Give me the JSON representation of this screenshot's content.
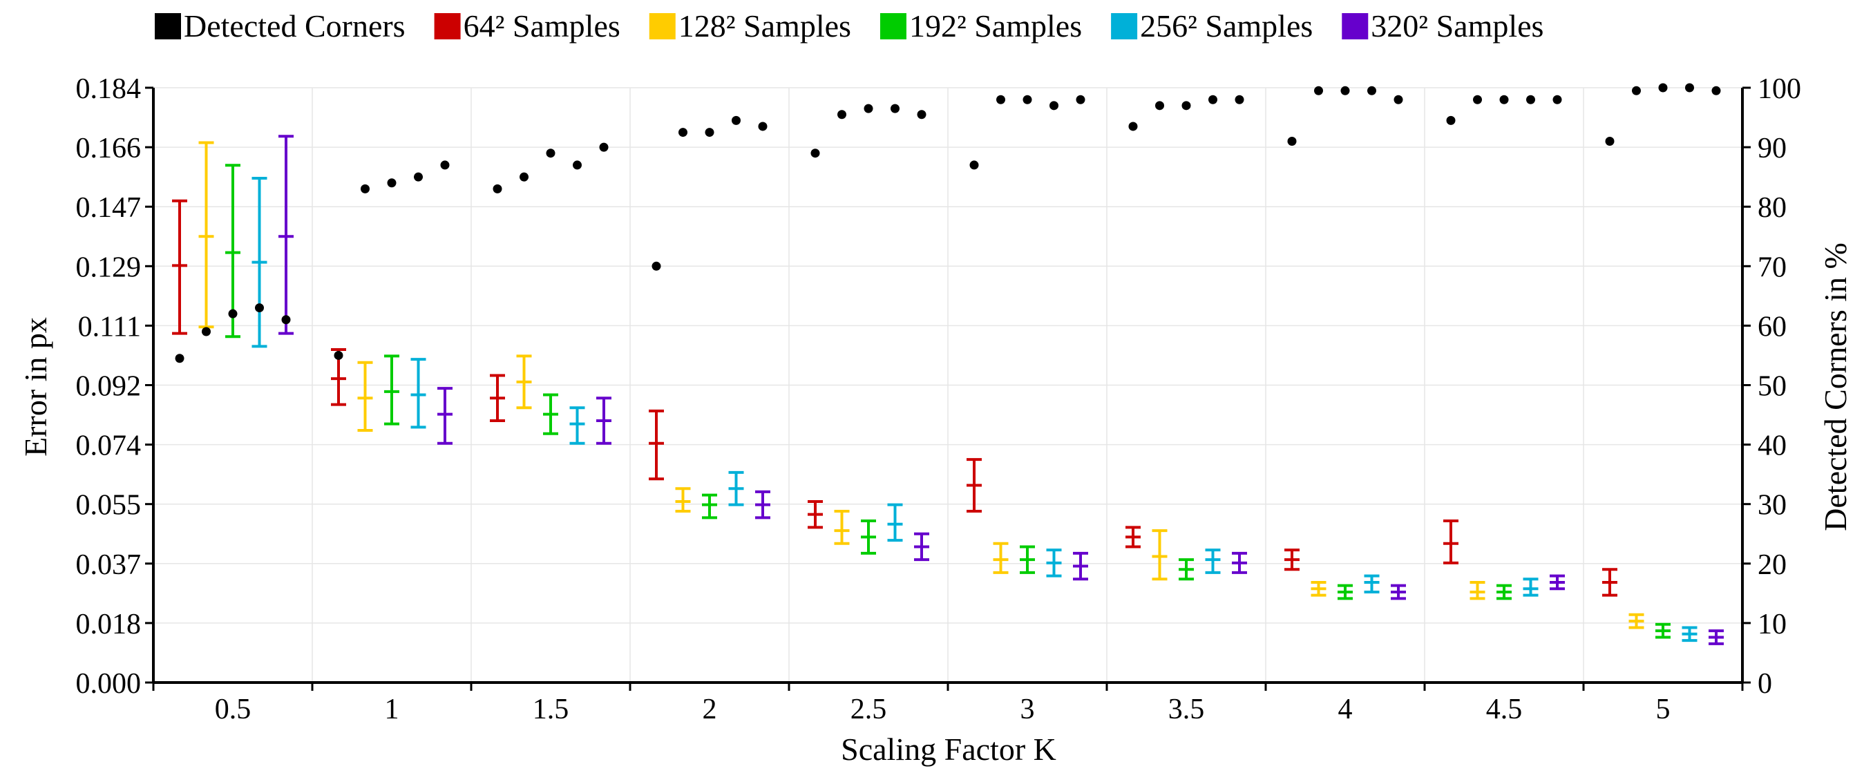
{
  "chart_data": {
    "type": "errorbar-scatter",
    "xlabel": "Scaling Factor K",
    "ylabel": "Error in px",
    "y2label": "Detected Corners in %",
    "categories": [
      "0.5",
      "1",
      "1.5",
      "2",
      "2.5",
      "3",
      "3.5",
      "4",
      "4.5",
      "5"
    ],
    "ylim": [
      0,
      0.184
    ],
    "yticks": [
      "0.000",
      "0.018",
      "0.037",
      "0.055",
      "0.074",
      "0.092",
      "0.111",
      "0.129",
      "0.147",
      "0.166",
      "0.184"
    ],
    "y2lim": [
      0,
      100
    ],
    "y2ticks": [
      "0",
      "10",
      "20",
      "30",
      "40",
      "50",
      "60",
      "70",
      "80",
      "90",
      "100"
    ],
    "grid": true,
    "legend_position": "top",
    "legend": [
      {
        "label": "Detected Corners",
        "color": "#000000"
      },
      {
        "label": "64² Samples",
        "color": "#cc0000"
      },
      {
        "label": "128² Samples",
        "color": "#ffcc00"
      },
      {
        "label": "192² Samples",
        "color": "#00cc00"
      },
      {
        "label": "256² Samples",
        "color": "#00b0d8"
      },
      {
        "label": "320² Samples",
        "color": "#6600cc"
      }
    ],
    "series": [
      {
        "name": "64² Samples",
        "color": "#cc0000",
        "mean": [
          0.129,
          0.094,
          0.088,
          0.074,
          0.052,
          0.061,
          0.045,
          0.038,
          0.043,
          0.031
        ],
        "low": [
          0.108,
          0.086,
          0.081,
          0.063,
          0.048,
          0.053,
          0.042,
          0.035,
          0.037,
          0.027
        ],
        "high": [
          0.149,
          0.103,
          0.095,
          0.084,
          0.056,
          0.069,
          0.048,
          0.041,
          0.05,
          0.035
        ]
      },
      {
        "name": "128² Samples",
        "color": "#ffcc00",
        "mean": [
          0.138,
          0.088,
          0.093,
          0.056,
          0.047,
          0.038,
          0.039,
          0.029,
          0.028,
          0.019
        ],
        "low": [
          0.11,
          0.078,
          0.085,
          0.053,
          0.043,
          0.034,
          0.032,
          0.027,
          0.026,
          0.017
        ],
        "high": [
          0.167,
          0.099,
          0.101,
          0.06,
          0.053,
          0.043,
          0.047,
          0.031,
          0.031,
          0.021
        ]
      },
      {
        "name": "192² Samples",
        "color": "#00cc00",
        "mean": [
          0.133,
          0.09,
          0.083,
          0.055,
          0.045,
          0.038,
          0.035,
          0.028,
          0.028,
          0.016
        ],
        "low": [
          0.107,
          0.08,
          0.077,
          0.051,
          0.04,
          0.034,
          0.032,
          0.026,
          0.026,
          0.014
        ],
        "high": [
          0.16,
          0.101,
          0.089,
          0.058,
          0.05,
          0.042,
          0.038,
          0.03,
          0.03,
          0.018
        ]
      },
      {
        "name": "256² Samples",
        "color": "#00b0d8",
        "mean": [
          0.13,
          0.089,
          0.08,
          0.06,
          0.049,
          0.037,
          0.038,
          0.031,
          0.029,
          0.015
        ],
        "low": [
          0.104,
          0.079,
          0.074,
          0.055,
          0.044,
          0.033,
          0.034,
          0.028,
          0.027,
          0.013
        ],
        "high": [
          0.156,
          0.1,
          0.085,
          0.065,
          0.055,
          0.041,
          0.041,
          0.033,
          0.032,
          0.017
        ]
      },
      {
        "name": "320² Samples",
        "color": "#6600cc",
        "mean": [
          0.138,
          0.083,
          0.081,
          0.055,
          0.042,
          0.036,
          0.037,
          0.028,
          0.031,
          0.014
        ],
        "low": [
          0.108,
          0.074,
          0.074,
          0.051,
          0.038,
          0.032,
          0.034,
          0.026,
          0.029,
          0.012
        ],
        "high": [
          0.169,
          0.091,
          0.088,
          0.059,
          0.046,
          0.04,
          0.04,
          0.03,
          0.033,
          0.016
        ]
      }
    ],
    "detected_corners": {
      "name": "Detected Corners",
      "color": "#000000",
      "values": [
        [
          54.5,
          59,
          62,
          63,
          61
        ],
        [
          55,
          83,
          84,
          85,
          87
        ],
        [
          83,
          85,
          89,
          87,
          90
        ],
        [
          70,
          92.5,
          92.5,
          94.5,
          93.5
        ],
        [
          89,
          95.5,
          96.5,
          96.5,
          95.5
        ],
        [
          87,
          98,
          98,
          97,
          98
        ],
        [
          93.5,
          97,
          97,
          98,
          98
        ],
        [
          91,
          99.5,
          99.5,
          99.5,
          98
        ],
        [
          94.5,
          98,
          98,
          98,
          98
        ],
        [
          91,
          99.5,
          100,
          100,
          99.5
        ]
      ]
    }
  }
}
